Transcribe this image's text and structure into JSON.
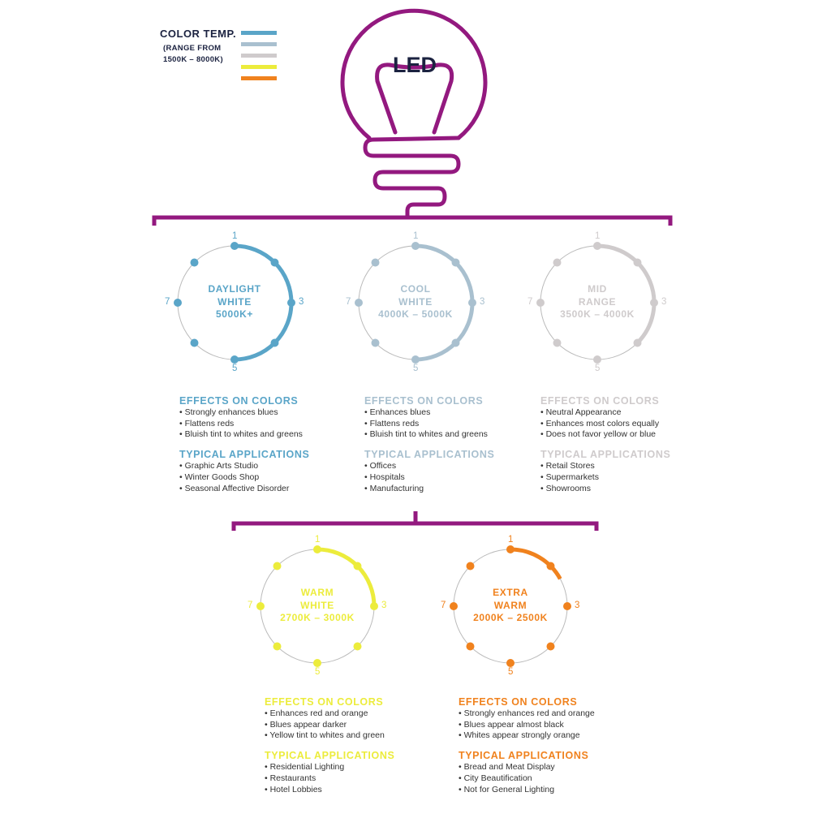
{
  "legend": {
    "title": "COLOR TEMP.",
    "subtitle_line1": "(RANGE FROM",
    "subtitle_line2": "1500K – 8000K)",
    "swatches": [
      "#5aa5c8",
      "#a9c0cf",
      "#cfcbcc",
      "#ecec3c",
      "#f0821e"
    ]
  },
  "bulb": {
    "label": "LED",
    "color": "#93197f",
    "label_color": "#1b2240"
  },
  "dial_labels": [
    "1",
    "3",
    "5",
    "7"
  ],
  "categories": [
    {
      "name_line1": "DAYLIGHT",
      "name_line2": "WHITE",
      "range": "5000K+",
      "color": "#5aa5c8",
      "arc_fraction": 0.5,
      "effects_heading": "EFFECTS ON COLORS",
      "effects": [
        "Strongly enhances blues",
        "Flattens reds",
        "Bluish tint to whites and greens"
      ],
      "apps_heading": "TYPICAL APPLICATIONS",
      "apps": [
        "Graphic Arts Studio",
        "Winter Goods Shop",
        "Seasonal Affective Disorder"
      ]
    },
    {
      "name_line1": "COOL",
      "name_line2": "WHITE",
      "range": "4000K – 5000K",
      "color": "#a9c0cf",
      "arc_fraction": 0.5,
      "effects_heading": "EFFECTS ON COLORS",
      "effects": [
        "Enhances blues",
        "Flattens reds",
        "Bluish tint to whites and greens"
      ],
      "apps_heading": "TYPICAL APPLICATIONS",
      "apps": [
        "Offices",
        "Hospitals",
        "Manufacturing"
      ]
    },
    {
      "name_line1": "MID",
      "name_line2": "RANGE",
      "range": "3500K – 4000K",
      "color": "#cfcbcc",
      "arc_fraction": 0.375,
      "effects_heading": "EFFECTS ON COLORS",
      "effects": [
        "Neutral Appearance",
        "Enhances most colors equally",
        "Does not favor yellow or blue"
      ],
      "apps_heading": "TYPICAL APPLICATIONS",
      "apps": [
        "Retail Stores",
        "Supermarkets",
        "Showrooms"
      ]
    },
    {
      "name_line1": "WARM",
      "name_line2": "WHITE",
      "range": "2700K – 3000K",
      "color": "#ecec3c",
      "arc_fraction": 0.25,
      "effects_heading": "EFFECTS ON COLORS",
      "effects": [
        "Enhances red and orange",
        "Blues appear darker",
        "Yellow tint to whites and green"
      ],
      "apps_heading": "TYPICAL APPLICATIONS",
      "apps": [
        "Residential Lighting",
        "Restaurants",
        "Hotel Lobbies"
      ]
    },
    {
      "name_line1": "EXTRA",
      "name_line2": "WARM",
      "range": "2000K – 2500K",
      "color": "#f0821e",
      "arc_fraction": 0.17,
      "effects_heading": "EFFECTS ON COLORS",
      "effects": [
        "Strongly enhances red and orange",
        "Blues appear almost black",
        "Whites appear strongly orange"
      ],
      "apps_heading": "TYPICAL APPLICATIONS",
      "apps": [
        "Bread and Meat Display",
        "City Beautification",
        "Not for General Lighting"
      ]
    }
  ]
}
